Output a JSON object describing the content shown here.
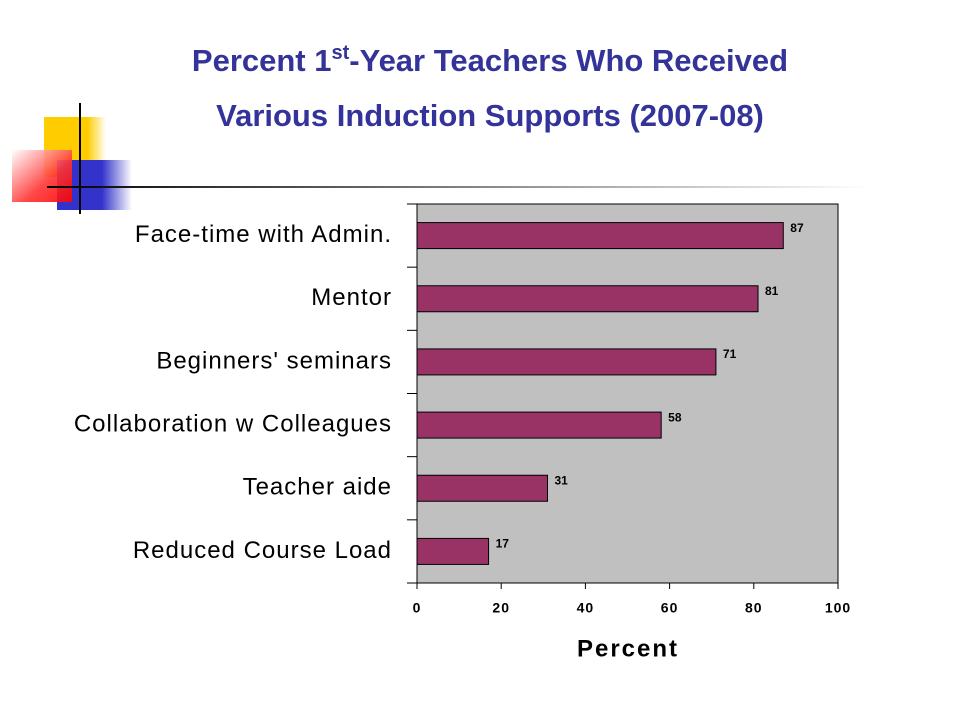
{
  "chart_data": {
    "type": "bar",
    "orientation": "horizontal",
    "title_line1": {
      "before": "Percent 1",
      "superscript": "st",
      "after": "-Year Teachers Who Received"
    },
    "title_line2": "Various Induction Supports (2007-08)",
    "categories": [
      "Face-time with Admin.",
      "Mentor",
      "Beginners' seminars",
      "Collaboration w Colleagues",
      "Teacher aide",
      "Reduced Course Load"
    ],
    "values": [
      87,
      81,
      71,
      58,
      31,
      17
    ],
    "color": "#993366",
    "xlabel": "Percent",
    "xlim": [
      0,
      100
    ],
    "xticks": [
      0,
      20,
      40,
      60,
      80,
      100
    ],
    "plot_background": "#c0c0c0"
  }
}
